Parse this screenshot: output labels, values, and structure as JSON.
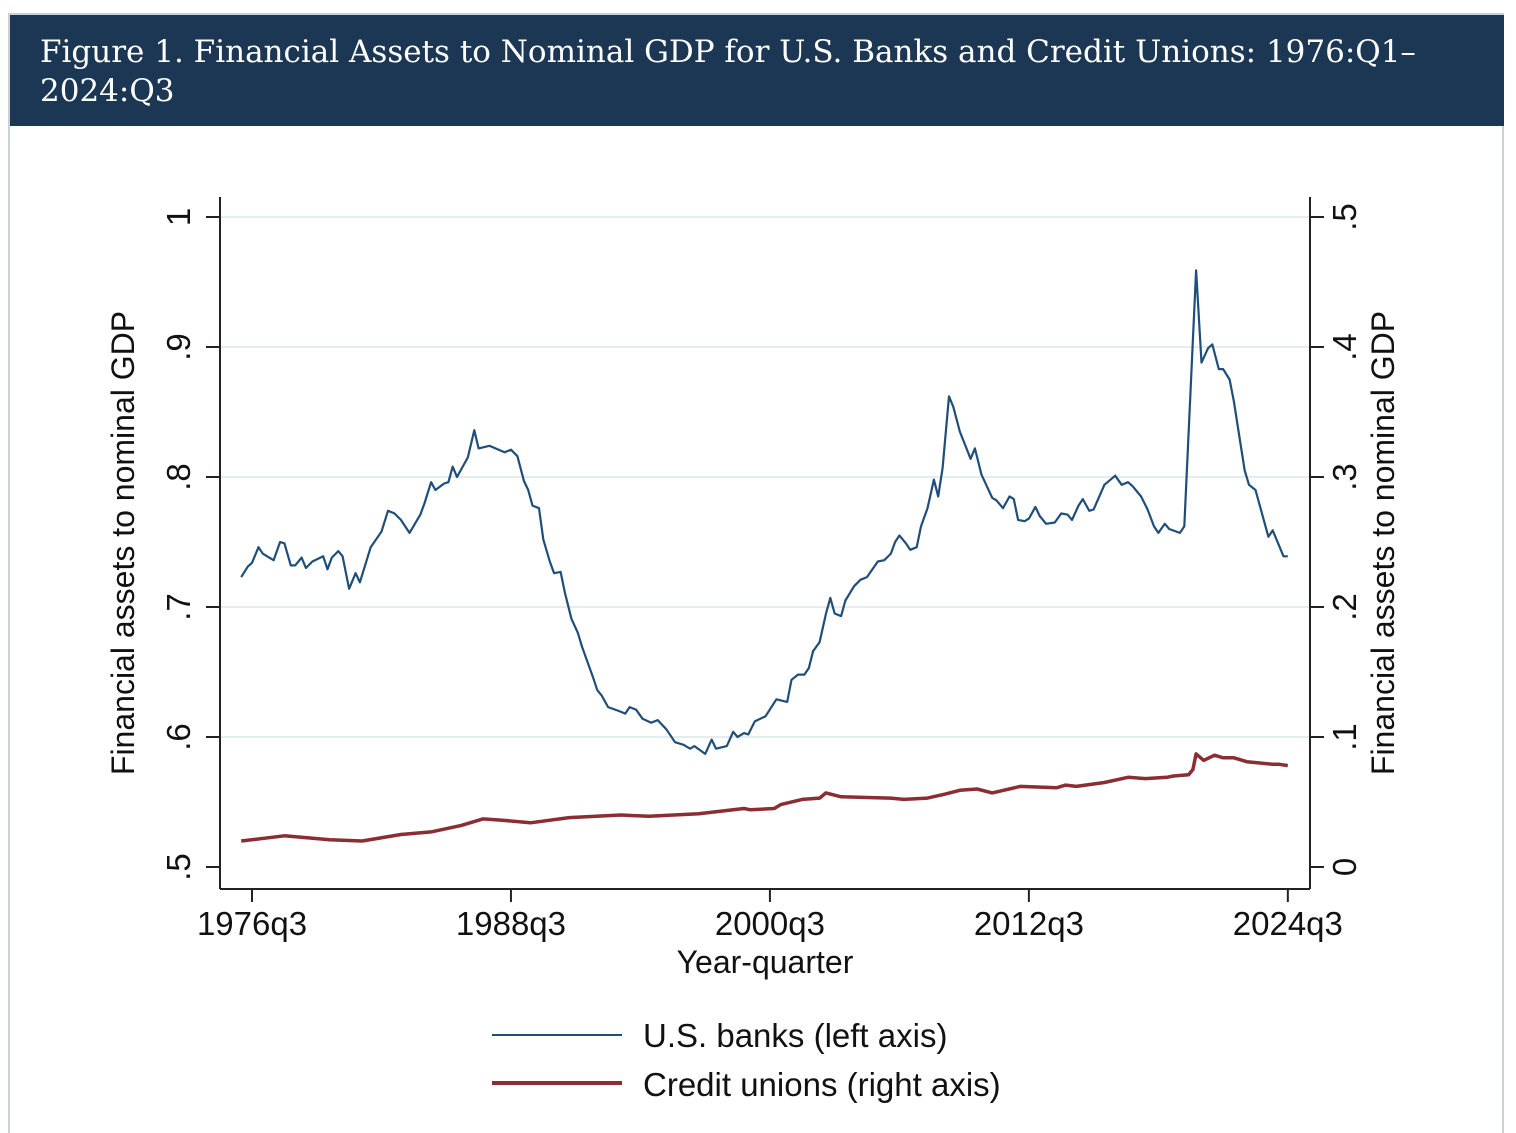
{
  "title": "Figure 1. Financial Assets to Nominal GDP for U.S. Banks and Credit Unions: 1976:Q1–2024:Q3",
  "chart_data": {
    "type": "line",
    "title": "Figure 1. Financial Assets to Nominal GDP for U.S. Banks and Credit Unions: 1976:Q1–2024:Q3",
    "xlabel": "Year-quarter",
    "ylabel_left": "Financial assets to nominal GDP",
    "ylabel_right": "Financial assets to nominal GDP",
    "x_unit": "year",
    "xlim": [
      1975.5,
      2025.5
    ],
    "ylim_left": [
      0.5,
      1.0
    ],
    "ylim_right": [
      0,
      0.5
    ],
    "grid": true,
    "legend_position": "bottom",
    "x_ticks": [
      {
        "label": "1976q3",
        "value": 1976.5
      },
      {
        "label": "1988q3",
        "value": 1988.5
      },
      {
        "label": "2000q3",
        "value": 2000.5
      },
      {
        "label": "2012q3",
        "value": 2012.5
      },
      {
        "label": "2024q3",
        "value": 2024.5
      }
    ],
    "y_ticks_left": [
      {
        "label": ".5",
        "value": 0.5
      },
      {
        "label": ".6",
        "value": 0.6
      },
      {
        "label": ".7",
        "value": 0.7
      },
      {
        "label": ".8",
        "value": 0.8
      },
      {
        "label": ".9",
        "value": 0.9
      },
      {
        "label": "1",
        "value": 1.0
      }
    ],
    "y_ticks_right": [
      {
        "label": "0",
        "value": 0
      },
      {
        "label": ".1",
        "value": 0.1
      },
      {
        "label": ".2",
        "value": 0.2
      },
      {
        "label": ".3",
        "value": 0.3
      },
      {
        "label": ".4",
        "value": 0.4
      },
      {
        "label": ".5",
        "value": 0.5
      }
    ],
    "series": [
      {
        "name": "U.S. banks (left axis)",
        "axis": "left",
        "color": "#1f4e79",
        "points": [
          [
            1976.0,
            0.723
          ],
          [
            1976.3,
            0.731
          ],
          [
            1976.5,
            0.734
          ],
          [
            1976.8,
            0.746
          ],
          [
            1977.0,
            0.741
          ],
          [
            1977.5,
            0.736
          ],
          [
            1977.8,
            0.75
          ],
          [
            1978.0,
            0.749
          ],
          [
            1978.3,
            0.732
          ],
          [
            1978.5,
            0.732
          ],
          [
            1978.8,
            0.738
          ],
          [
            1979.0,
            0.73
          ],
          [
            1979.3,
            0.735
          ],
          [
            1979.8,
            0.739
          ],
          [
            1980.0,
            0.729
          ],
          [
            1980.2,
            0.738
          ],
          [
            1980.5,
            0.743
          ],
          [
            1980.7,
            0.739
          ],
          [
            1981.0,
            0.714
          ],
          [
            1981.3,
            0.726
          ],
          [
            1981.5,
            0.719
          ],
          [
            1982.0,
            0.746
          ],
          [
            1982.5,
            0.758
          ],
          [
            1982.8,
            0.774
          ],
          [
            1983.1,
            0.772
          ],
          [
            1983.4,
            0.767
          ],
          [
            1983.8,
            0.757
          ],
          [
            1984.3,
            0.771
          ],
          [
            1984.5,
            0.78
          ],
          [
            1984.8,
            0.796
          ],
          [
            1985.0,
            0.79
          ],
          [
            1985.4,
            0.795
          ],
          [
            1985.6,
            0.796
          ],
          [
            1985.8,
            0.808
          ],
          [
            1986.0,
            0.8
          ],
          [
            1986.5,
            0.815
          ],
          [
            1986.8,
            0.836
          ],
          [
            1987.0,
            0.822
          ],
          [
            1987.5,
            0.824
          ],
          [
            1988.2,
            0.819
          ],
          [
            1988.5,
            0.821
          ],
          [
            1988.8,
            0.816
          ],
          [
            1989.1,
            0.797
          ],
          [
            1989.3,
            0.79
          ],
          [
            1989.5,
            0.778
          ],
          [
            1989.8,
            0.776
          ],
          [
            1990.0,
            0.752
          ],
          [
            1990.3,
            0.735
          ],
          [
            1990.5,
            0.726
          ],
          [
            1990.8,
            0.727
          ],
          [
            1991.0,
            0.711
          ],
          [
            1991.3,
            0.691
          ],
          [
            1991.6,
            0.68
          ],
          [
            1991.8,
            0.669
          ],
          [
            1992.3,
            0.646
          ],
          [
            1992.5,
            0.636
          ],
          [
            1992.7,
            0.632
          ],
          [
            1993.0,
            0.623
          ],
          [
            1993.5,
            0.62
          ],
          [
            1993.8,
            0.618
          ],
          [
            1994.0,
            0.623
          ],
          [
            1994.3,
            0.621
          ],
          [
            1994.6,
            0.614
          ],
          [
            1995.0,
            0.611
          ],
          [
            1995.3,
            0.613
          ],
          [
            1995.7,
            0.606
          ],
          [
            1996.1,
            0.596
          ],
          [
            1996.5,
            0.594
          ],
          [
            1996.8,
            0.591
          ],
          [
            1997.0,
            0.593
          ],
          [
            1997.5,
            0.587
          ],
          [
            1997.8,
            0.598
          ],
          [
            1998.0,
            0.591
          ],
          [
            1998.5,
            0.593
          ],
          [
            1998.8,
            0.604
          ],
          [
            1999.0,
            0.6
          ],
          [
            1999.3,
            0.603
          ],
          [
            1999.5,
            0.602
          ],
          [
            1999.8,
            0.612
          ],
          [
            2000.3,
            0.616
          ],
          [
            2000.8,
            0.629
          ],
          [
            2001.3,
            0.627
          ],
          [
            2001.5,
            0.644
          ],
          [
            2001.8,
            0.648
          ],
          [
            2002.1,
            0.648
          ],
          [
            2002.3,
            0.653
          ],
          [
            2002.5,
            0.666
          ],
          [
            2002.8,
            0.673
          ],
          [
            2003.1,
            0.695
          ],
          [
            2003.3,
            0.707
          ],
          [
            2003.5,
            0.695
          ],
          [
            2003.8,
            0.693
          ],
          [
            2004.0,
            0.705
          ],
          [
            2004.4,
            0.716
          ],
          [
            2004.7,
            0.721
          ],
          [
            2005.0,
            0.723
          ],
          [
            2005.5,
            0.735
          ],
          [
            2005.8,
            0.736
          ],
          [
            2006.1,
            0.741
          ],
          [
            2006.3,
            0.75
          ],
          [
            2006.5,
            0.755
          ],
          [
            2006.8,
            0.749
          ],
          [
            2007.0,
            0.744
          ],
          [
            2007.3,
            0.746
          ],
          [
            2007.5,
            0.762
          ],
          [
            2007.8,
            0.776
          ],
          [
            2008.1,
            0.798
          ],
          [
            2008.3,
            0.785
          ],
          [
            2008.5,
            0.807
          ],
          [
            2008.8,
            0.862
          ],
          [
            2009.0,
            0.854
          ],
          [
            2009.3,
            0.835
          ],
          [
            2009.8,
            0.814
          ],
          [
            2010.0,
            0.822
          ],
          [
            2010.3,
            0.802
          ],
          [
            2010.8,
            0.784
          ],
          [
            2011.0,
            0.782
          ],
          [
            2011.3,
            0.776
          ],
          [
            2011.6,
            0.785
          ],
          [
            2011.8,
            0.783
          ],
          [
            2012.0,
            0.767
          ],
          [
            2012.3,
            0.766
          ],
          [
            2012.5,
            0.768
          ],
          [
            2012.8,
            0.777
          ],
          [
            2013.0,
            0.77
          ],
          [
            2013.3,
            0.764
          ],
          [
            2013.7,
            0.765
          ],
          [
            2014.0,
            0.772
          ],
          [
            2014.3,
            0.771
          ],
          [
            2014.5,
            0.767
          ],
          [
            2014.8,
            0.778
          ],
          [
            2015.0,
            0.783
          ],
          [
            2015.3,
            0.774
          ],
          [
            2015.5,
            0.775
          ],
          [
            2016.0,
            0.794
          ],
          [
            2016.5,
            0.801
          ],
          [
            2016.8,
            0.794
          ],
          [
            2017.1,
            0.796
          ],
          [
            2017.3,
            0.793
          ],
          [
            2017.7,
            0.785
          ],
          [
            2018.0,
            0.775
          ],
          [
            2018.3,
            0.762
          ],
          [
            2018.5,
            0.757
          ],
          [
            2018.8,
            0.764
          ],
          [
            2019.0,
            0.76
          ],
          [
            2019.5,
            0.757
          ],
          [
            2019.7,
            0.762
          ],
          [
            2020.25,
            0.959
          ],
          [
            2020.5,
            0.888
          ],
          [
            2020.8,
            0.899
          ],
          [
            2021.0,
            0.902
          ],
          [
            2021.3,
            0.883
          ],
          [
            2021.5,
            0.883
          ],
          [
            2021.8,
            0.875
          ],
          [
            2022.0,
            0.858
          ],
          [
            2022.3,
            0.826
          ],
          [
            2022.5,
            0.805
          ],
          [
            2022.7,
            0.794
          ],
          [
            2023.0,
            0.79
          ],
          [
            2023.6,
            0.754
          ],
          [
            2023.8,
            0.759
          ],
          [
            2024.0,
            0.751
          ],
          [
            2024.3,
            0.739
          ],
          [
            2024.5,
            0.739
          ]
        ]
      },
      {
        "name": "Credit unions (right axis)",
        "axis": "right",
        "color": "#8b2e33",
        "points": [
          [
            1976.0,
            0.02
          ],
          [
            1978.0,
            0.024
          ],
          [
            1980.1,
            0.021
          ],
          [
            1981.6,
            0.02
          ],
          [
            1983.4,
            0.025
          ],
          [
            1984.8,
            0.027
          ],
          [
            1986.2,
            0.032
          ],
          [
            1987.2,
            0.037
          ],
          [
            1988.1,
            0.036
          ],
          [
            1989.4,
            0.034
          ],
          [
            1991.2,
            0.038
          ],
          [
            1993.6,
            0.04
          ],
          [
            1994.9,
            0.039
          ],
          [
            1997.2,
            0.041
          ],
          [
            1999.3,
            0.045
          ],
          [
            1999.6,
            0.044
          ],
          [
            2000.7,
            0.045
          ],
          [
            2001.0,
            0.048
          ],
          [
            2002.0,
            0.052
          ],
          [
            2002.8,
            0.053
          ],
          [
            2003.1,
            0.057
          ],
          [
            2003.8,
            0.054
          ],
          [
            2006.1,
            0.053
          ],
          [
            2006.7,
            0.052
          ],
          [
            2007.8,
            0.053
          ],
          [
            2008.6,
            0.056
          ],
          [
            2009.3,
            0.059
          ],
          [
            2010.1,
            0.06
          ],
          [
            2010.8,
            0.057
          ],
          [
            2012.1,
            0.062
          ],
          [
            2013.8,
            0.061
          ],
          [
            2014.2,
            0.063
          ],
          [
            2014.7,
            0.062
          ],
          [
            2016.0,
            0.065
          ],
          [
            2017.1,
            0.069
          ],
          [
            2017.9,
            0.068
          ],
          [
            2018.9,
            0.069
          ],
          [
            2019.2,
            0.07
          ],
          [
            2019.9,
            0.071
          ],
          [
            2020.1,
            0.075
          ],
          [
            2020.25,
            0.087
          ],
          [
            2020.6,
            0.082
          ],
          [
            2021.1,
            0.086
          ],
          [
            2021.5,
            0.084
          ],
          [
            2022.0,
            0.084
          ],
          [
            2022.6,
            0.081
          ],
          [
            2023.2,
            0.08
          ],
          [
            2023.8,
            0.079
          ],
          [
            2024.1,
            0.079
          ],
          [
            2024.5,
            0.078
          ]
        ]
      }
    ]
  }
}
